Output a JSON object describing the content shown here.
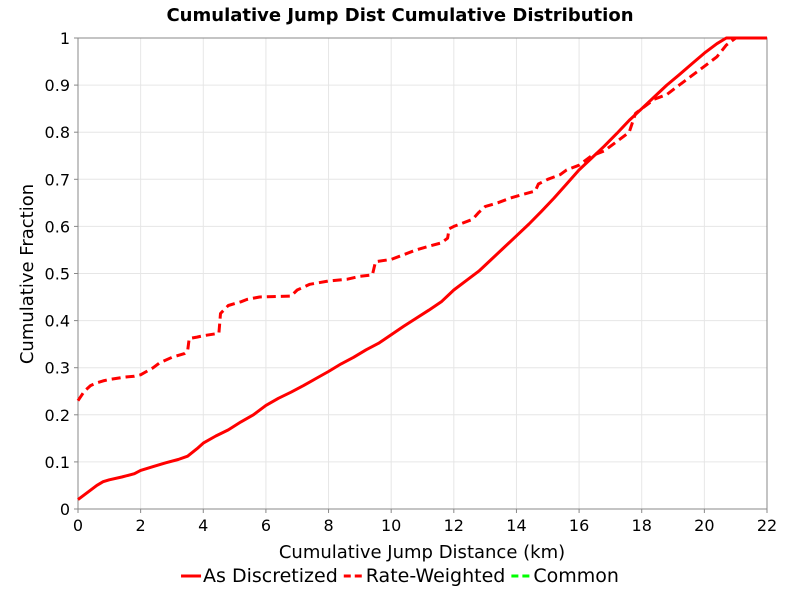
{
  "chart_data": {
    "type": "line",
    "title": "Cumulative Jump Dist Cumulative Distribution",
    "xlabel": "Cumulative Jump Distance (km)",
    "ylabel": "Cumulative Fraction",
    "xlim": [
      0,
      22
    ],
    "ylim": [
      0,
      1
    ],
    "x_ticks": [
      "0",
      "2",
      "4",
      "6",
      "8",
      "10",
      "12",
      "14",
      "16",
      "18",
      "20",
      "22"
    ],
    "y_ticks": [
      "0",
      "0.1",
      "0.2",
      "0.3",
      "0.4",
      "0.5",
      "0.6",
      "0.7",
      "0.8",
      "0.9",
      "1"
    ],
    "grid": true,
    "legend_position": "bottom",
    "series": [
      {
        "name": "As Discretized",
        "color": "#ff0000",
        "dash": "solid",
        "x": [
          0,
          0.4,
          0.6,
          0.8,
          1.0,
          1.4,
          1.8,
          2.0,
          2.4,
          2.8,
          3.2,
          3.5,
          3.8,
          4.0,
          4.4,
          4.8,
          5.2,
          5.6,
          6.0,
          6.4,
          6.8,
          7.2,
          7.6,
          8.0,
          8.4,
          8.8,
          9.2,
          9.6,
          10.0,
          10.4,
          10.8,
          11.2,
          11.6,
          12.0,
          12.4,
          12.8,
          13.2,
          13.6,
          14.0,
          14.4,
          14.8,
          15.2,
          15.6,
          16.0,
          16.4,
          16.8,
          17.2,
          17.6,
          18.0,
          18.4,
          18.8,
          19.2,
          19.6,
          20.0,
          20.4,
          20.7,
          21.0,
          22.0
        ],
        "values": [
          0.02,
          0.04,
          0.05,
          0.058,
          0.062,
          0.068,
          0.075,
          0.082,
          0.09,
          0.098,
          0.105,
          0.112,
          0.128,
          0.14,
          0.155,
          0.168,
          0.185,
          0.2,
          0.22,
          0.235,
          0.248,
          0.262,
          0.277,
          0.292,
          0.308,
          0.322,
          0.338,
          0.352,
          0.37,
          0.388,
          0.405,
          0.422,
          0.44,
          0.465,
          0.485,
          0.505,
          0.53,
          0.555,
          0.58,
          0.605,
          0.632,
          0.66,
          0.69,
          0.72,
          0.745,
          0.77,
          0.797,
          0.825,
          0.85,
          0.875,
          0.9,
          0.922,
          0.945,
          0.968,
          0.988,
          1.0,
          1.0,
          1.0
        ]
      },
      {
        "name": "Rate-Weighted",
        "color": "#ff0000",
        "dash": "dashed",
        "x": [
          0,
          0.2,
          0.4,
          0.6,
          0.8,
          1.0,
          1.5,
          1.8,
          2.0,
          2.4,
          2.6,
          3.0,
          3.4,
          3.5,
          3.55,
          3.8,
          4.0,
          4.5,
          4.55,
          4.8,
          5.2,
          5.4,
          5.8,
          6.2,
          6.8,
          7.0,
          7.4,
          8.0,
          8.6,
          9.0,
          9.4,
          9.5,
          10.0,
          10.4,
          10.8,
          11.2,
          11.6,
          11.8,
          11.85,
          12.0,
          12.6,
          12.8,
          13.0,
          13.4,
          13.8,
          14.2,
          14.6,
          14.7,
          15.0,
          15.4,
          15.6,
          16.0,
          16.4,
          16.8,
          17.2,
          17.6,
          17.8,
          18.0,
          18.4,
          18.8,
          19.2,
          19.6,
          20.0,
          20.4,
          20.7,
          21.0,
          22.0
        ],
        "values": [
          0.23,
          0.25,
          0.262,
          0.268,
          0.272,
          0.275,
          0.28,
          0.282,
          0.285,
          0.3,
          0.31,
          0.322,
          0.33,
          0.335,
          0.362,
          0.365,
          0.368,
          0.373,
          0.415,
          0.432,
          0.44,
          0.445,
          0.45,
          0.451,
          0.452,
          0.465,
          0.477,
          0.484,
          0.488,
          0.494,
          0.497,
          0.525,
          0.53,
          0.54,
          0.55,
          0.558,
          0.565,
          0.575,
          0.595,
          0.6,
          0.615,
          0.63,
          0.642,
          0.65,
          0.66,
          0.668,
          0.675,
          0.69,
          0.7,
          0.71,
          0.72,
          0.73,
          0.75,
          0.76,
          0.78,
          0.8,
          0.84,
          0.85,
          0.87,
          0.88,
          0.9,
          0.92,
          0.94,
          0.96,
          0.985,
          1.0,
          1.0
        ]
      },
      {
        "name": "Common",
        "color": "#00ff00",
        "dash": "dashed",
        "x": [],
        "values": []
      }
    ]
  }
}
